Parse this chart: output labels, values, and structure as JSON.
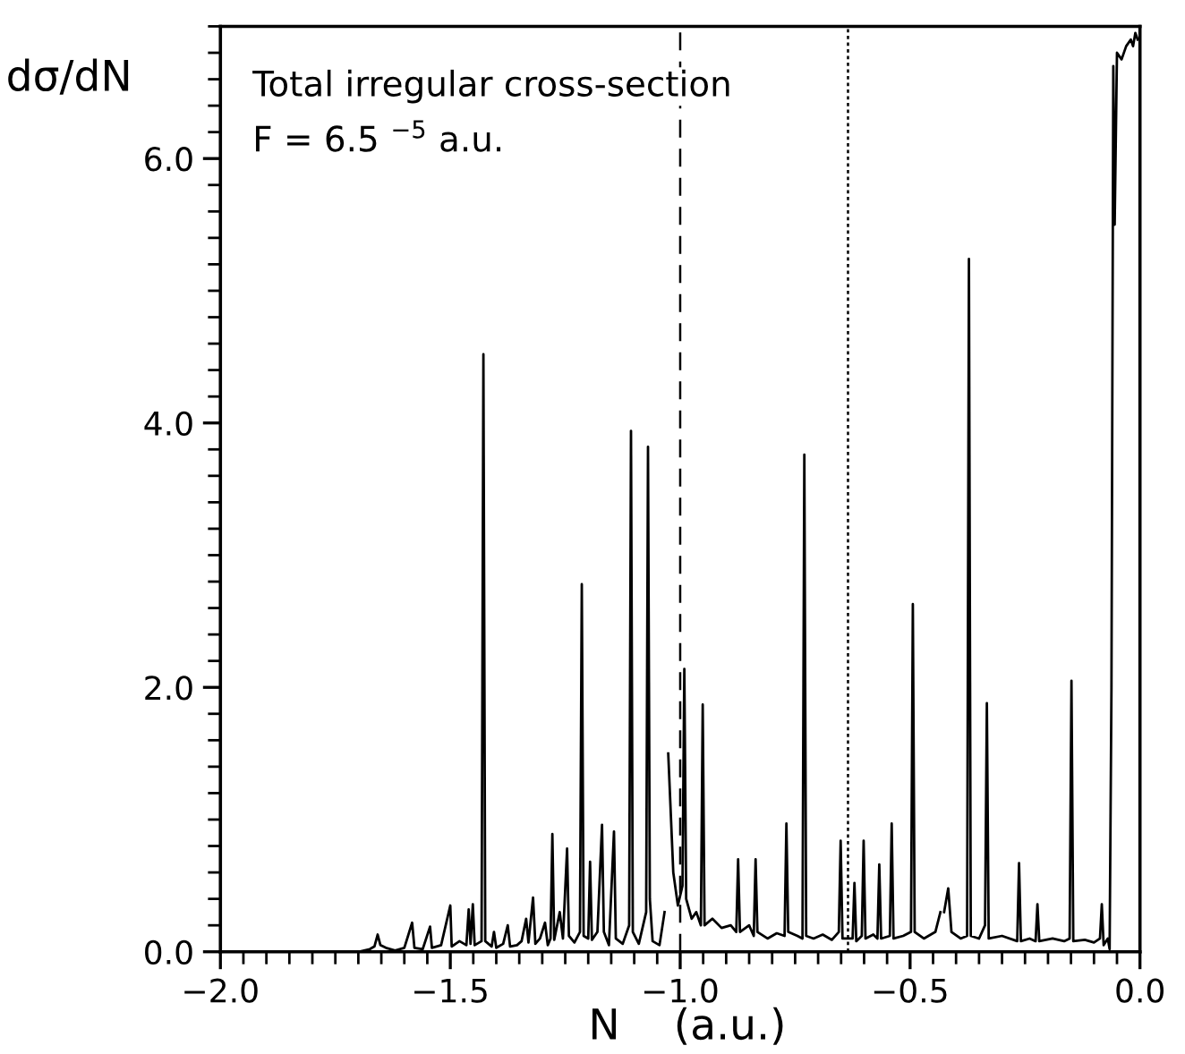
{
  "chart_data": {
    "type": "line",
    "xlabel": "N    (a.u.)",
    "ylabel": "dσ/dN",
    "annotations": [
      "Total irregular cross-section",
      "F = 6.5 $^{−5}$ a.u."
    ],
    "xlim": [
      -2.0,
      0.0
    ],
    "ylim": [
      0,
      7
    ],
    "xticks": [
      {
        "value": -2.0,
        "label": "−2.0"
      },
      {
        "value": -1.5,
        "label": "−1.5"
      },
      {
        "value": -1.0,
        "label": "−1.0"
      },
      {
        "value": -0.5,
        "label": "−0.5"
      },
      {
        "value": 0.0,
        "label": "0.0"
      }
    ],
    "yticks": [
      {
        "value": 0,
        "label": "0.0"
      },
      {
        "value": 2,
        "label": "2.0"
      },
      {
        "value": 4,
        "label": "4.0"
      },
      {
        "value": 6,
        "label": "6.0"
      }
    ],
    "marker": "none",
    "line_style": "solid",
    "ref_lines": [
      {
        "axis": "x",
        "value": -1.0,
        "label": null,
        "color": "#000000",
        "line_style": "dashed"
      },
      {
        "axis": "x",
        "value": -0.635,
        "label": null,
        "color": "#000000",
        "line_style": "dotted"
      }
    ],
    "series": [
      {
        "color": "#000000",
        "x": [
          -2.0,
          -1.7,
          -1.675,
          -1.665,
          -1.658,
          -1.652,
          -1.64,
          -1.62,
          -1.6,
          -1.583,
          -1.578,
          -1.56,
          -1.544,
          -1.54,
          -1.52,
          -1.5,
          -1.497,
          -1.48,
          -1.465,
          -1.46,
          -1.456,
          -1.451,
          -1.447,
          -1.432,
          -1.428,
          -1.424,
          -1.41,
          -1.405,
          -1.4,
          -1.385,
          -1.375,
          -1.37,
          -1.355,
          -1.345,
          -1.335,
          -1.33,
          -1.32,
          -1.315,
          -1.305,
          -1.294,
          -1.288,
          -1.282,
          -1.278,
          -1.274,
          -1.262,
          -1.255,
          -1.246,
          -1.242,
          -1.23,
          -1.218,
          -1.214,
          -1.21,
          -1.2,
          -1.196,
          -1.192,
          -1.18,
          -1.17,
          -1.166,
          -1.155,
          -1.144,
          -1.14,
          -1.125,
          -1.111,
          -1.107,
          -1.103,
          -1.09,
          -1.074,
          -1.07,
          -1.066,
          -1.06,
          -1.045,
          -1.034,
          -1.03,
          -1.026,
          -1.015,
          -1.005,
          -0.995,
          -0.991,
          -0.987,
          -0.975,
          -0.965,
          -0.955,
          -0.951,
          -0.947,
          -0.93,
          -0.91,
          -0.89,
          -0.878,
          -0.874,
          -0.87,
          -0.85,
          -0.84,
          -0.836,
          -0.832,
          -0.81,
          -0.79,
          -0.773,
          -0.769,
          -0.765,
          -0.745,
          -0.734,
          -0.73,
          -0.726,
          -0.71,
          -0.69,
          -0.67,
          -0.655,
          -0.651,
          -0.647,
          -0.625,
          -0.621,
          -0.617,
          -0.605,
          -0.601,
          -0.597,
          -0.58,
          -0.571,
          -0.567,
          -0.563,
          -0.544,
          -0.54,
          -0.536,
          -0.515,
          -0.498,
          -0.494,
          -0.49,
          -0.47,
          -0.445,
          -0.434,
          -0.43,
          -0.426,
          -0.417,
          -0.41,
          -0.39,
          -0.376,
          -0.372,
          -0.368,
          -0.35,
          -0.337,
          -0.333,
          -0.329,
          -0.3,
          -0.267,
          -0.263,
          -0.259,
          -0.24,
          -0.227,
          -0.223,
          -0.219,
          -0.19,
          -0.165,
          -0.153,
          -0.149,
          -0.145,
          -0.12,
          -0.1,
          -0.087,
          -0.083,
          -0.079,
          -0.07,
          -0.066,
          -0.062,
          -0.058,
          -0.055,
          -0.05,
          -0.04,
          -0.03,
          -0.02,
          -0.015,
          -0.01,
          -0.005
        ],
        "values": [
          0,
          0,
          0.02,
          0.04,
          0.13,
          0.05,
          0.03,
          0.01,
          0.03,
          0.22,
          0.03,
          0.02,
          0.19,
          0.03,
          0.05,
          0.35,
          0.04,
          0.08,
          0.05,
          0.32,
          0.06,
          0.36,
          0.05,
          0.08,
          4.52,
          0.08,
          0.04,
          0.15,
          0.03,
          0.06,
          0.2,
          0.04,
          0.05,
          0.08,
          0.25,
          0.07,
          0.41,
          0.06,
          0.1,
          0.22,
          0.05,
          0.1,
          0.89,
          0.09,
          0.3,
          0.1,
          0.78,
          0.12,
          0.07,
          0.15,
          2.78,
          0.12,
          0.1,
          0.68,
          0.09,
          0.15,
          0.96,
          0.15,
          0.05,
          0.91,
          0.1,
          0.06,
          0.2,
          3.94,
          0.15,
          0.06,
          0.3,
          3.82,
          0.4,
          0.08,
          0.05,
          0.3,
          null,
          1.5,
          0.6,
          0.35,
          0.5,
          2.14,
          0.4,
          0.25,
          0.3,
          0.2,
          1.87,
          0.2,
          0.25,
          0.18,
          0.2,
          0.15,
          0.7,
          0.15,
          0.2,
          0.12,
          0.7,
          0.15,
          0.1,
          0.14,
          0.12,
          0.97,
          0.15,
          0.12,
          0.1,
          3.76,
          0.12,
          0.1,
          0.13,
          0.09,
          0.15,
          0.84,
          0.1,
          0.1,
          0.52,
          0.08,
          0.12,
          0.84,
          0.1,
          0.13,
          0.1,
          0.66,
          0.1,
          0.12,
          0.97,
          0.1,
          0.12,
          0.15,
          2.63,
          0.15,
          0.1,
          0.15,
          0.3,
          null,
          0.3,
          0.48,
          0.15,
          0.1,
          0.12,
          5.24,
          0.12,
          0.1,
          0.2,
          1.88,
          0.1,
          0.12,
          0.08,
          0.67,
          0.08,
          0.1,
          0.08,
          0.36,
          0.08,
          0.1,
          0.08,
          0.1,
          2.05,
          0.08,
          0.09,
          0.07,
          0.1,
          0.36,
          0.05,
          0.1,
          0.02,
          2.0,
          6.7,
          5.5,
          6.8,
          6.75,
          6.85,
          6.9,
          6.85,
          6.95,
          6.9
        ]
      }
    ]
  }
}
